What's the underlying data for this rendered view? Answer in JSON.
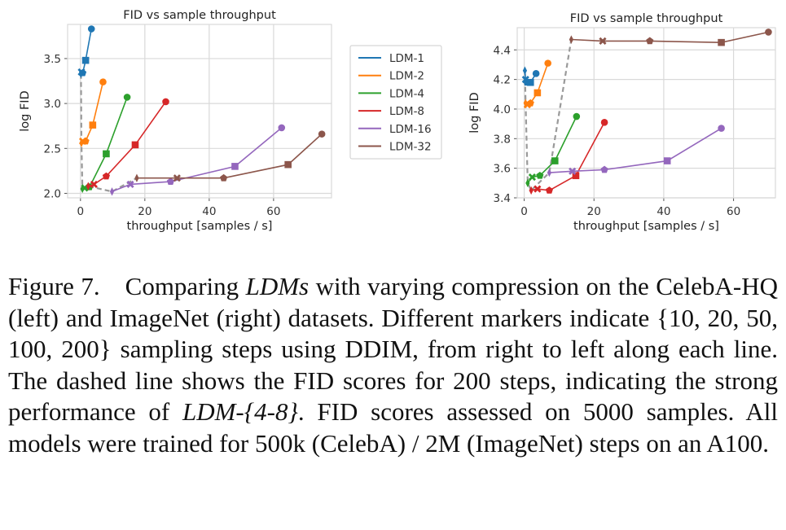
{
  "chart_data": [
    {
      "type": "line",
      "title": "FID vs sample throughput",
      "xlabel": "throughput [samples / s]",
      "ylabel": "log FID",
      "xlim": [
        -4,
        78
      ],
      "ylim": [
        1.95,
        3.88
      ],
      "xticks": [
        0,
        20,
        40,
        60
      ],
      "yticks": [
        2.0,
        2.5,
        3.0,
        3.5
      ],
      "grid": true,
      "legend": "right-outside",
      "series": [
        {
          "name": "LDM-1",
          "color": "#1f77b4",
          "x": [
            3.4,
            1.6,
            0.7,
            0.3,
            0.15
          ],
          "y": [
            3.83,
            3.48,
            3.34,
            3.35,
            3.33
          ]
        },
        {
          "name": "LDM-2",
          "color": "#ff7f0e",
          "x": [
            7.0,
            3.8,
            1.6,
            0.7,
            0.3
          ],
          "y": [
            3.24,
            2.76,
            2.58,
            2.58,
            2.56
          ]
        },
        {
          "name": "LDM-4",
          "color": "#2ca02c",
          "x": [
            14.5,
            8.0,
            2.8,
            1.3,
            0.6
          ],
          "y": [
            3.07,
            2.44,
            2.07,
            2.06,
            2.05
          ]
        },
        {
          "name": "LDM-8",
          "color": "#d62728",
          "x": [
            26.5,
            17.0,
            8.0,
            4.2,
            2.4
          ],
          "y": [
            3.02,
            2.54,
            2.19,
            2.1,
            2.08
          ]
        },
        {
          "name": "LDM-16",
          "color": "#9467bd",
          "x": [
            62.5,
            48.0,
            28.0,
            15.5,
            9.8
          ],
          "y": [
            2.73,
            2.3,
            2.13,
            2.1,
            2.02
          ]
        },
        {
          "name": "LDM-32",
          "color": "#8c564b",
          "x": [
            75.0,
            64.5,
            44.5,
            30.0,
            17.5
          ],
          "y": [
            2.66,
            2.32,
            2.17,
            2.17,
            2.17
          ]
        }
      ],
      "dashed_200_steps": {
        "x": [
          0.15,
          0.3,
          0.6,
          2.4,
          9.8,
          17.5
        ],
        "y": [
          3.33,
          2.56,
          2.05,
          2.08,
          2.02,
          2.17
        ]
      }
    },
    {
      "type": "line",
      "title": "FID vs sample throughput",
      "xlabel": "throughput [samples / s]",
      "ylabel": "log FID",
      "xlim": [
        -2,
        72
      ],
      "ylim": [
        3.4,
        4.55
      ],
      "xticks": [
        0,
        20,
        40,
        60
      ],
      "yticks": [
        3.4,
        3.6,
        3.8,
        4.0,
        4.2,
        4.4
      ],
      "grid": true,
      "series": [
        {
          "name": "LDM-1",
          "color": "#1f77b4",
          "x": [
            3.4,
            1.8,
            0.8,
            0.4,
            0.2
          ],
          "y": [
            4.24,
            4.18,
            4.18,
            4.2,
            4.26
          ]
        },
        {
          "name": "LDM-2",
          "color": "#ff7f0e",
          "x": [
            6.8,
            3.8,
            1.8,
            0.9,
            0.4
          ],
          "y": [
            4.31,
            4.11,
            4.04,
            4.03,
            4.04
          ]
        },
        {
          "name": "LDM-4",
          "color": "#2ca02c",
          "x": [
            15.0,
            8.8,
            4.5,
            2.3,
            1.0
          ],
          "y": [
            3.95,
            3.65,
            3.55,
            3.54,
            3.5
          ]
        },
        {
          "name": "LDM-8",
          "color": "#d62728",
          "x": [
            23.0,
            14.8,
            7.2,
            3.8,
            2.0
          ],
          "y": [
            3.91,
            3.55,
            3.45,
            3.46,
            3.45
          ]
        },
        {
          "name": "LDM-16",
          "color": "#9467bd",
          "x": [
            56.5,
            41.0,
            23.0,
            13.8,
            7.2
          ],
          "y": [
            3.87,
            3.65,
            3.59,
            3.58,
            3.57
          ]
        },
        {
          "name": "LDM-32",
          "color": "#8c564b",
          "x": [
            70.0,
            56.5,
            36.0,
            22.5,
            13.5
          ],
          "y": [
            4.52,
            4.45,
            4.46,
            4.46,
            4.47
          ]
        }
      ],
      "dashed_200_steps": {
        "x": [
          0.2,
          0.4,
          1.0,
          2.0,
          7.2,
          13.5
        ],
        "y": [
          4.26,
          4.04,
          3.5,
          3.45,
          3.57,
          4.47
        ]
      }
    }
  ],
  "markers_by_step": [
    "circle",
    "square",
    "pentagon",
    "x",
    "thin_diamond"
  ],
  "caption": {
    "label": "Figure 7.",
    "p1": "Comparing ",
    "em1": "LDMs",
    "p2": " with varying compression on the CelebA-HQ (left) and ImageNet (right) datasets. Different markers indicate {10, 20, 50, 100, 200} sampling steps using DDIM, from right to left along each line. The dashed line shows the FID scores for 200 steps, indicating the strong performance of ",
    "em2": "LDM-{4-8}",
    "p3": ". FID scores assessed on 5000 samples. All models were trained for 500k (CelebA) / 2M (ImageNet) steps on an A100."
  }
}
